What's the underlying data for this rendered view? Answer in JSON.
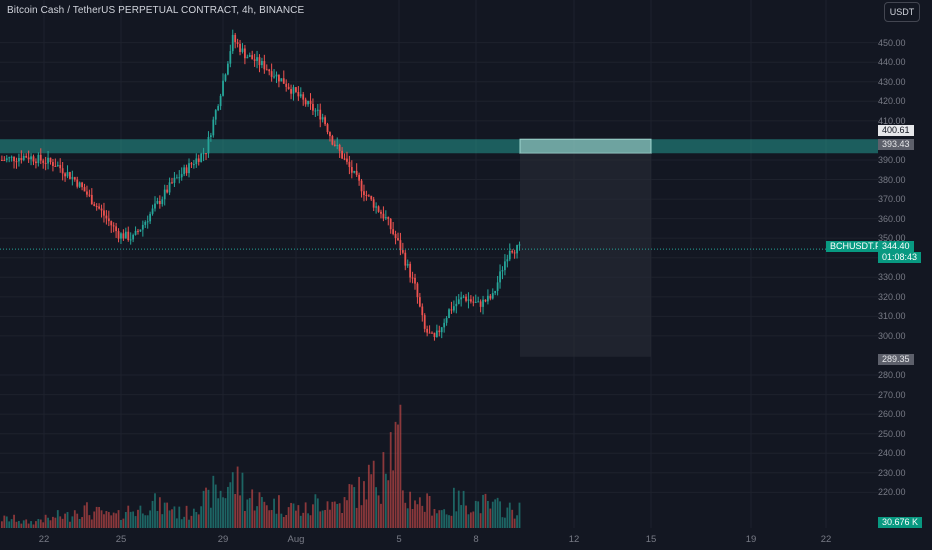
{
  "header": {
    "title": "Bitcoin Cash / TetherUS PERPETUAL CONTRACT, 4h, BINANCE",
    "currency_button": "USDT"
  },
  "price_axis": {
    "labels": [
      "450.00",
      "440.00",
      "430.00",
      "420.00",
      "410.00",
      "390.00",
      "380.00",
      "370.00",
      "360.00",
      "350.00",
      "340.00",
      "330.00",
      "320.00",
      "310.00",
      "300.00",
      "280.00",
      "270.00",
      "260.00",
      "250.00",
      "240.00",
      "230.00",
      "220.00"
    ],
    "tags": {
      "upper_zone": "400.61",
      "lower_zone": "393.43",
      "symbol": "BCHUSDT.P",
      "last_price": "344.40",
      "countdown": "01:08:43",
      "range_low": "289.35",
      "volume": "30.676 K"
    }
  },
  "time_axis": {
    "labels": [
      "22",
      "25",
      "29",
      "Aug",
      "5",
      "8",
      "12",
      "15",
      "19",
      "22"
    ]
  },
  "colors": {
    "background": "#131722",
    "up": "#26a69a",
    "down": "#ef5350",
    "zone": "#26a69a",
    "tag_bg_grey": "#5d606b",
    "symbol_tag": "#089981"
  },
  "chart_data": {
    "type": "candlestick",
    "symbol": "BCHUSDT.P",
    "interval": "4h",
    "exchange": "BINANCE",
    "y_range": [
      212,
      458
    ],
    "last_price": 344.4,
    "zone": {
      "top": 400.61,
      "bottom": 393.43
    },
    "projection_low": 289.35,
    "current_volume": "30.676 K",
    "path_anchors": [
      [
        0,
        390
      ],
      [
        10,
        392
      ],
      [
        22,
        388
      ],
      [
        30,
        380
      ],
      [
        40,
        365
      ],
      [
        48,
        352
      ],
      [
        54,
        350
      ],
      [
        62,
        364
      ],
      [
        70,
        378
      ],
      [
        78,
        388
      ],
      [
        84,
        395
      ],
      [
        90,
        425
      ],
      [
        95,
        452
      ],
      [
        100,
        444
      ],
      [
        108,
        438
      ],
      [
        116,
        430
      ],
      [
        124,
        420
      ],
      [
        132,
        412
      ],
      [
        136,
        400
      ],
      [
        142,
        388
      ],
      [
        150,
        372
      ],
      [
        158,
        360
      ],
      [
        164,
        345
      ],
      [
        170,
        325
      ],
      [
        174,
        303
      ],
      [
        178,
        298
      ],
      [
        184,
        313
      ],
      [
        190,
        320
      ],
      [
        196,
        316
      ],
      [
        202,
        320
      ],
      [
        206,
        335
      ],
      [
        209,
        345
      ],
      [
        213,
        344.4
      ]
    ],
    "volume_levels": [
      3,
      2,
      3,
      4,
      6,
      5,
      4,
      6,
      8,
      7,
      5,
      9,
      12,
      15,
      10,
      8,
      7,
      6,
      9,
      8,
      12,
      16,
      28,
      10,
      8,
      6,
      9,
      8,
      7,
      6
    ]
  }
}
